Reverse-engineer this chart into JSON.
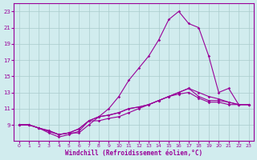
{
  "xlabel": "Windchill (Refroidissement éolien,°C)",
  "xlim": [
    -0.5,
    23.5
  ],
  "ylim": [
    7,
    24
  ],
  "yticks": [
    9,
    11,
    13,
    15,
    17,
    19,
    21,
    23
  ],
  "xticks": [
    0,
    1,
    2,
    3,
    4,
    5,
    6,
    7,
    8,
    9,
    10,
    11,
    12,
    13,
    14,
    15,
    16,
    17,
    18,
    19,
    20,
    21,
    22,
    23
  ],
  "background_color": "#d1ecee",
  "grid_color": "#aacccc",
  "line_color": "#990099",
  "lines": [
    [
      9.0,
      9.0,
      8.6,
      8.3,
      7.8,
      8.0,
      8.0,
      9.0,
      10.0,
      11.0,
      12.5,
      14.5,
      16.0,
      17.5,
      19.5,
      22.0,
      23.0,
      21.5,
      21.0,
      17.5,
      13.0,
      13.5,
      11.5,
      11.5
    ],
    [
      9.0,
      9.0,
      8.6,
      8.0,
      7.5,
      7.8,
      8.2,
      9.5,
      9.5,
      9.8,
      10.0,
      10.5,
      11.0,
      11.5,
      12.0,
      12.5,
      13.0,
      13.5,
      13.0,
      12.5,
      12.2,
      11.8,
      11.5,
      11.5
    ],
    [
      9.0,
      9.0,
      8.6,
      8.2,
      7.8,
      8.0,
      8.5,
      9.5,
      10.0,
      10.2,
      10.5,
      11.0,
      11.2,
      11.5,
      12.0,
      12.5,
      13.0,
      13.5,
      12.5,
      12.0,
      12.0,
      11.8,
      11.5,
      11.5
    ],
    [
      9.0,
      9.0,
      8.6,
      8.2,
      7.8,
      8.0,
      8.5,
      9.5,
      10.0,
      10.2,
      10.5,
      11.0,
      11.2,
      11.5,
      12.0,
      12.5,
      12.8,
      13.0,
      12.3,
      11.8,
      11.8,
      11.5,
      11.5,
      11.5
    ]
  ]
}
